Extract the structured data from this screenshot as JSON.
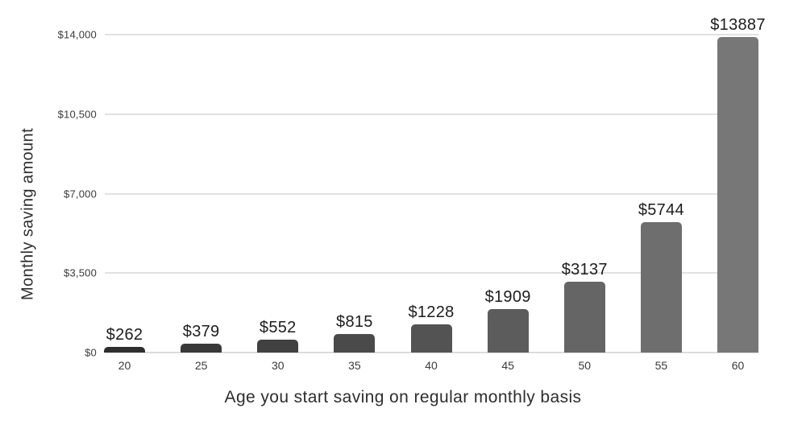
{
  "chart_data": {
    "type": "bar",
    "title": "",
    "xlabel": "Age you start saving on regular monthly basis",
    "ylabel": "Monthly saving amount",
    "categories": [
      "20",
      "25",
      "30",
      "35",
      "40",
      "45",
      "50",
      "55",
      "60"
    ],
    "values": [
      262,
      379,
      552,
      815,
      1228,
      1909,
      3137,
      5744,
      13887
    ],
    "bar_labels": [
      "$262",
      "$379",
      "$552",
      "$815",
      "$1228",
      "$1909",
      "$3137",
      "$5744",
      "$13887"
    ],
    "ylim": [
      0,
      14000
    ],
    "yticks": [
      {
        "value": 0,
        "label": "$0"
      },
      {
        "value": 3500,
        "label": "$3,500"
      },
      {
        "value": 7000,
        "label": "$7,000"
      },
      {
        "value": 10500,
        "label": "$10,500"
      },
      {
        "value": 14000,
        "label": "$14,000"
      }
    ],
    "grid": true,
    "legend_position": "none",
    "bar_colors": [
      "#2f2f2f",
      "#383838",
      "#414141",
      "#4a4a4a",
      "#535353",
      "#5c5c5c",
      "#656565",
      "#6e6e6e",
      "#777777"
    ],
    "colors": {
      "background": "#ffffff",
      "gridline": "#e2e2e2",
      "axis_line": "#dcdcdc",
      "value_label_text": "#1d1d1d",
      "tick_text": "#3a3a3a",
      "axis_title_text": "#2e2e2e"
    }
  }
}
